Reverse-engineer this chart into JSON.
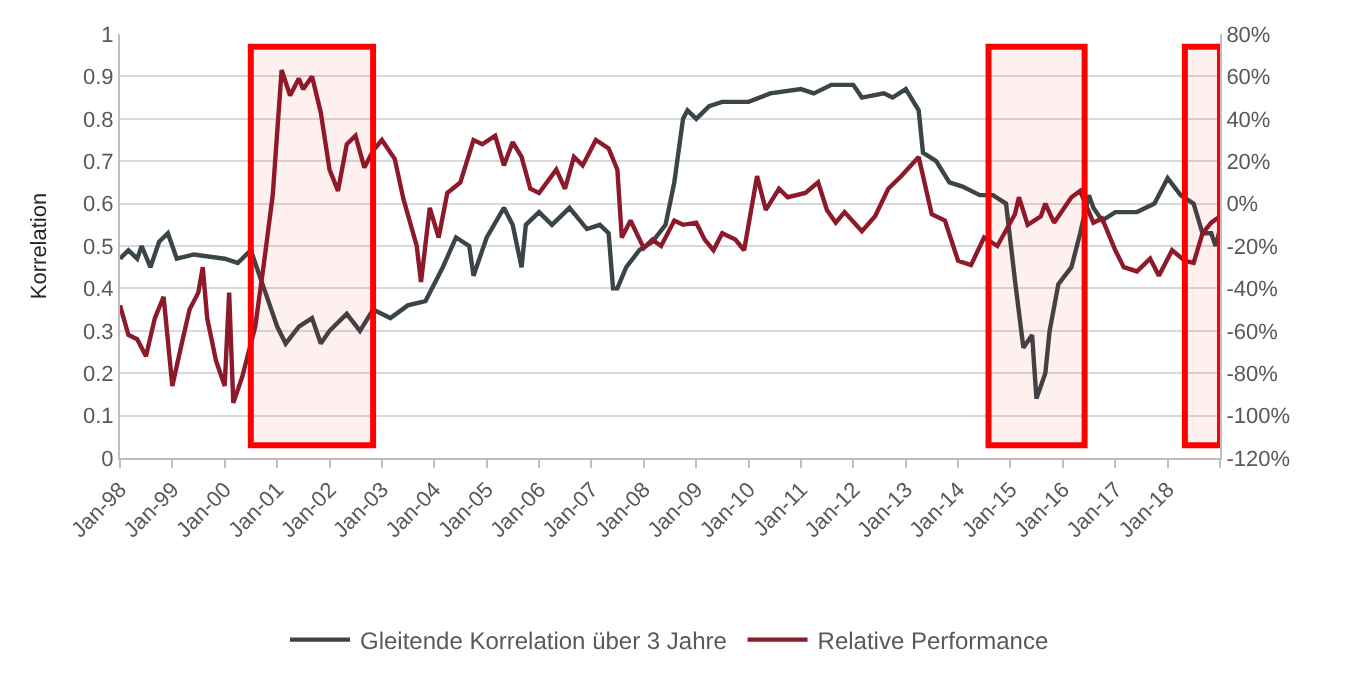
{
  "chart_data": {
    "type": "line",
    "ylabel": "Korrelation",
    "grid": "y",
    "legend": "bottom",
    "line_style": "solid",
    "marker": "none",
    "xlim": [
      "1998-01",
      "2019-01"
    ],
    "xticks": [
      {
        "value": "1998-01",
        "label": "Jan-98"
      },
      {
        "value": "1999-01",
        "label": "Jan-99"
      },
      {
        "value": "2000-01",
        "label": "Jan-00"
      },
      {
        "value": "2001-01",
        "label": "Jan-01"
      },
      {
        "value": "2002-01",
        "label": "Jan-02"
      },
      {
        "value": "2003-01",
        "label": "Jan-03"
      },
      {
        "value": "2004-01",
        "label": "Jan-04"
      },
      {
        "value": "2005-01",
        "label": "Jan-05"
      },
      {
        "value": "2006-01",
        "label": "Jan-06"
      },
      {
        "value": "2007-01",
        "label": "Jan-07"
      },
      {
        "value": "2008-01",
        "label": "Jan-08"
      },
      {
        "value": "2009-01",
        "label": "Jan-09"
      },
      {
        "value": "2010-01",
        "label": "Jan-10"
      },
      {
        "value": "2011-01",
        "label": "Jan-11"
      },
      {
        "value": "2012-01",
        "label": "Jan-12"
      },
      {
        "value": "2013-01",
        "label": "Jan-13"
      },
      {
        "value": "2014-01",
        "label": "Jan-14"
      },
      {
        "value": "2015-01",
        "label": "Jan-15"
      },
      {
        "value": "2016-01",
        "label": "Jan-16"
      },
      {
        "value": "2017-01",
        "label": "Jan-17"
      },
      {
        "value": "2018-01",
        "label": "Jan-18"
      },
      {
        "value": "2019-01",
        "label": null
      }
    ],
    "ylim": [
      0,
      1
    ],
    "yticks": [
      0,
      0.1,
      0.2,
      0.3,
      0.4,
      0.5,
      0.6,
      0.7,
      0.8,
      0.9,
      1
    ],
    "y2lim": [
      -120,
      80
    ],
    "y2ticks": [
      {
        "value": -120,
        "label": "-120%"
      },
      {
        "value": -100,
        "label": "-100%"
      },
      {
        "value": -80,
        "label": "-80%"
      },
      {
        "value": -60,
        "label": "-60%"
      },
      {
        "value": -40,
        "label": "-40%"
      },
      {
        "value": -20,
        "label": "-20%"
      },
      {
        "value": 0,
        "label": "0%"
      },
      {
        "value": 20,
        "label": "20%"
      },
      {
        "value": 40,
        "label": "40%"
      },
      {
        "value": 60,
        "label": "60%"
      },
      {
        "value": 80,
        "label": "80%"
      }
    ],
    "bands": [
      {
        "axis": "x",
        "from": "2000-07",
        "to": "2002-11",
        "color": "#ff0000"
      },
      {
        "axis": "x",
        "from": "2014-08",
        "to": "2016-06",
        "color": "#ff0000"
      },
      {
        "axis": "x",
        "from": "2018-05",
        "to": "2019-01",
        "color": "#ff0000"
      }
    ],
    "series": [
      {
        "name": "Gleitende Korrelation über 3 Jahre",
        "color": "#3a4449",
        "x": [
          "1998-01",
          "1998-03",
          "1998-05",
          "1998-06",
          "1998-08",
          "1998-10",
          "1998-12",
          "1999-02",
          "1999-06",
          "2000-01",
          "2000-04",
          "2000-07",
          "2000-10",
          "2001-01",
          "2001-03",
          "2001-06",
          "2001-09",
          "2001-11",
          "2002-01",
          "2002-05",
          "2002-08",
          "2002-11",
          "2003-03",
          "2003-07",
          "2003-11",
          "2004-03",
          "2004-06",
          "2004-09",
          "2004-10",
          "2005-01",
          "2005-05",
          "2005-07",
          "2005-09",
          "2005-10",
          "2006-01",
          "2006-04",
          "2006-08",
          "2006-12",
          "2007-03",
          "2007-05",
          "2007-06",
          "2007-07",
          "2007-09",
          "2007-12",
          "2008-03",
          "2008-06",
          "2008-08",
          "2008-10",
          "2008-11",
          "2009-01",
          "2009-04",
          "2009-07",
          "2010-01",
          "2010-06",
          "2011-01",
          "2011-04",
          "2011-08",
          "2012-01",
          "2012-03",
          "2012-08",
          "2012-10",
          "2013-01",
          "2013-04",
          "2013-05",
          "2013-08",
          "2013-11",
          "2014-02",
          "2014-06",
          "2014-09",
          "2014-12",
          "2015-02",
          "2015-04",
          "2015-06",
          "2015-07",
          "2015-09",
          "2015-10",
          "2015-12",
          "2016-03",
          "2016-05",
          "2016-07",
          "2016-08",
          "2016-10",
          "2017-01",
          "2017-06",
          "2017-10",
          "2018-01",
          "2018-04",
          "2018-07",
          "2018-09",
          "2018-11",
          "2018-12",
          "2019-01"
        ],
        "values": [
          0.47,
          0.49,
          0.47,
          0.5,
          0.45,
          0.51,
          0.53,
          0.47,
          0.48,
          0.47,
          0.46,
          0.49,
          0.4,
          0.31,
          0.27,
          0.31,
          0.33,
          0.27,
          0.3,
          0.34,
          0.3,
          0.35,
          0.33,
          0.36,
          0.37,
          0.45,
          0.52,
          0.5,
          0.43,
          0.52,
          0.59,
          0.55,
          0.45,
          0.55,
          0.58,
          0.55,
          0.59,
          0.54,
          0.55,
          0.53,
          0.4,
          0.4,
          0.45,
          0.49,
          0.51,
          0.55,
          0.65,
          0.8,
          0.82,
          0.8,
          0.83,
          0.84,
          0.84,
          0.86,
          0.87,
          0.86,
          0.88,
          0.88,
          0.85,
          0.86,
          0.85,
          0.87,
          0.82,
          0.72,
          0.7,
          0.65,
          0.64,
          0.62,
          0.62,
          0.6,
          0.42,
          0.26,
          0.29,
          0.14,
          0.2,
          0.3,
          0.41,
          0.45,
          0.53,
          0.62,
          0.59,
          0.56,
          0.58,
          0.58,
          0.6,
          0.66,
          0.62,
          0.6,
          0.53,
          0.53,
          0.5,
          0.54
        ]
      },
      {
        "name": "Relative Performance",
        "color": "#8b1a2b",
        "axis": "y2",
        "x": [
          "1998-01",
          "1998-03",
          "1998-05",
          "1998-07",
          "1998-09",
          "1998-11",
          "1999-01",
          "1999-03",
          "1999-05",
          "1999-07",
          "1999-08",
          "1999-09",
          "1999-11",
          "2000-01",
          "2000-02",
          "2000-03",
          "2000-05",
          "2000-08",
          "2000-10",
          "2000-12",
          "2001-02",
          "2001-04",
          "2001-06",
          "2001-07",
          "2001-09",
          "2001-11",
          "2002-01",
          "2002-03",
          "2002-05",
          "2002-07",
          "2002-09",
          "2002-11",
          "2003-01",
          "2003-04",
          "2003-06",
          "2003-09",
          "2003-10",
          "2003-12",
          "2004-02",
          "2004-04",
          "2004-07",
          "2004-10",
          "2004-12",
          "2005-03",
          "2005-05",
          "2005-07",
          "2005-09",
          "2005-11",
          "2006-01",
          "2006-05",
          "2006-07",
          "2006-09",
          "2006-11",
          "2007-02",
          "2007-05",
          "2007-07",
          "2007-08",
          "2007-10",
          "2008-01",
          "2008-03",
          "2008-05",
          "2008-08",
          "2008-10",
          "2009-01",
          "2009-03",
          "2009-05",
          "2009-07",
          "2009-10",
          "2009-12",
          "2010-03",
          "2010-05",
          "2010-08",
          "2010-10",
          "2011-02",
          "2011-05",
          "2011-07",
          "2011-09",
          "2011-11",
          "2012-03",
          "2012-06",
          "2012-09",
          "2012-12",
          "2013-04",
          "2013-07",
          "2013-10",
          "2014-01",
          "2014-04",
          "2014-07",
          "2014-10",
          "2015-02",
          "2015-03",
          "2015-05",
          "2015-08",
          "2015-09",
          "2015-11",
          "2016-03",
          "2016-05",
          "2016-08",
          "2016-10",
          "2017-01",
          "2017-03",
          "2017-06",
          "2017-09",
          "2017-11",
          "2018-02",
          "2018-05",
          "2018-07",
          "2018-09",
          "2018-11",
          "2019-01"
        ],
        "values": [
          -48,
          -62,
          -64,
          -72,
          -54,
          -44,
          -86,
          -68,
          -50,
          -42,
          -30,
          -54,
          -74,
          -86,
          -42,
          -94,
          -82,
          -58,
          -28,
          4,
          63,
          51,
          59,
          54,
          60,
          43,
          16,
          6,
          28,
          32,
          17,
          25,
          30,
          21,
          2,
          -20,
          -37,
          -2,
          -16,
          5,
          10,
          30,
          28,
          32,
          18,
          29,
          22,
          7,
          5,
          16,
          7,
          22,
          18,
          30,
          26,
          16,
          -16,
          -8,
          -21,
          -17,
          -20,
          -8,
          -10,
          -9,
          -17,
          -22,
          -14,
          -17,
          -22,
          13,
          -3,
          7,
          3,
          5,
          10,
          -3,
          -9,
          -4,
          -13,
          -6,
          7,
          13,
          22,
          -5,
          -8,
          -27,
          -29,
          -16,
          -20,
          -5,
          3,
          -10,
          -6,
          0,
          -9,
          3,
          6,
          -9,
          -7,
          -22,
          -30,
          -32,
          -26,
          -34,
          -22,
          -27,
          -28,
          -14,
          -9,
          -6
        ]
      }
    ]
  }
}
